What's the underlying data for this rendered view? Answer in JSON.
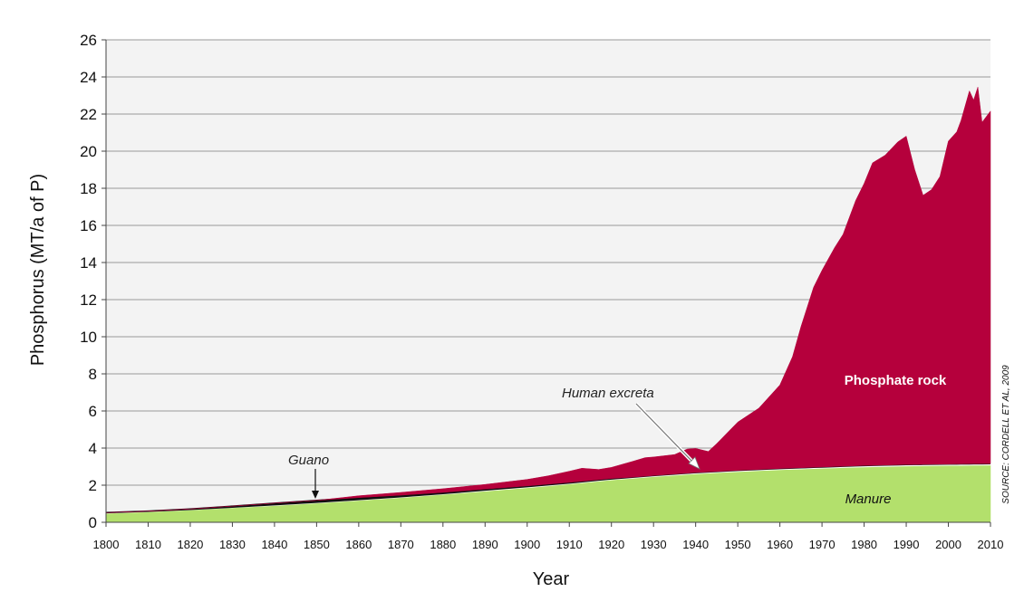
{
  "chart_data": {
    "type": "area",
    "stacked": true,
    "xlabel": "Year",
    "ylabel": "Phosphorus (MT/a of P)",
    "xlim": [
      1800,
      2010
    ],
    "ylim": [
      0,
      26
    ],
    "x_ticks": [
      1800,
      1810,
      1820,
      1830,
      1840,
      1850,
      1860,
      1870,
      1880,
      1890,
      1900,
      1910,
      1920,
      1930,
      1940,
      1950,
      1960,
      1970,
      1980,
      1990,
      2000,
      2010
    ],
    "y_ticks": [
      0,
      2,
      4,
      6,
      8,
      10,
      12,
      14,
      16,
      18,
      20,
      22,
      24,
      26
    ],
    "grid": "horizontal",
    "annotations": {
      "guano": "Guano",
      "human_excreta": "Human excreta",
      "source": "SOURCE: CORDELL ET AL, 2009"
    },
    "series": [
      {
        "name": "Manure",
        "color": "#b3e06c",
        "x": [
          1800,
          1810,
          1820,
          1830,
          1840,
          1850,
          1860,
          1870,
          1880,
          1890,
          1900,
          1910,
          1920,
          1930,
          1940,
          1950,
          1960,
          1970,
          1980,
          1990,
          2000,
          2010
        ],
        "values": [
          0.5,
          0.58,
          0.68,
          0.8,
          0.92,
          1.05,
          1.2,
          1.35,
          1.52,
          1.7,
          1.88,
          2.08,
          2.3,
          2.48,
          2.63,
          2.75,
          2.85,
          2.93,
          3.0,
          3.05,
          3.08,
          3.1
        ]
      },
      {
        "name": "Human excreta",
        "color": "#ffffff",
        "x": [
          1800,
          1810,
          1820,
          1830,
          1840,
          1850,
          1860,
          1870,
          1880,
          1890,
          1900,
          1910,
          1920,
          1930,
          1940,
          1950,
          1960,
          1970,
          1980,
          1990,
          2000,
          2010
        ],
        "values": [
          0.02,
          0.02,
          0.02,
          0.02,
          0.03,
          0.03,
          0.03,
          0.03,
          0.03,
          0.04,
          0.04,
          0.04,
          0.04,
          0.04,
          0.05,
          0.05,
          0.05,
          0.05,
          0.06,
          0.06,
          0.06,
          0.06
        ]
      },
      {
        "name": "Guano",
        "color": "#111111",
        "x": [
          1820,
          1830,
          1840,
          1850,
          1860,
          1870,
          1880,
          1890,
          1900,
          1910,
          1920
        ],
        "values": [
          0.02,
          0.05,
          0.08,
          0.1,
          0.1,
          0.08,
          0.06,
          0.05,
          0.04,
          0.03,
          0.02
        ]
      },
      {
        "name": "Phosphate rock",
        "color": "#b5003c",
        "x": [
          1850,
          1860,
          1870,
          1880,
          1890,
          1900,
          1905,
          1910,
          1913,
          1917,
          1920,
          1925,
          1928,
          1930,
          1935,
          1938,
          1940,
          1943,
          1945,
          1950,
          1955,
          1960,
          1963,
          1965,
          1968,
          1970,
          1973,
          1975,
          1978,
          1980,
          1982,
          1985,
          1988,
          1990,
          1992,
          1994,
          1996,
          1998,
          2000,
          2002,
          2003,
          2005,
          2006,
          2007,
          2008,
          2010
        ],
        "values": [
          0,
          0.1,
          0.15,
          0.2,
          0.25,
          0.35,
          0.45,
          0.6,
          0.7,
          0.55,
          0.6,
          0.85,
          1.0,
          1.0,
          1.05,
          1.3,
          1.3,
          1.1,
          1.5,
          2.6,
          3.3,
          4.5,
          6.0,
          7.6,
          9.7,
          10.6,
          11.8,
          12.5,
          14.3,
          15.2,
          16.3,
          16.7,
          17.4,
          17.7,
          15.9,
          14.5,
          14.8,
          15.5,
          17.4,
          17.9,
          18.5,
          20.1,
          19.6,
          20.3,
          18.4,
          19.0
        ]
      }
    ]
  }
}
